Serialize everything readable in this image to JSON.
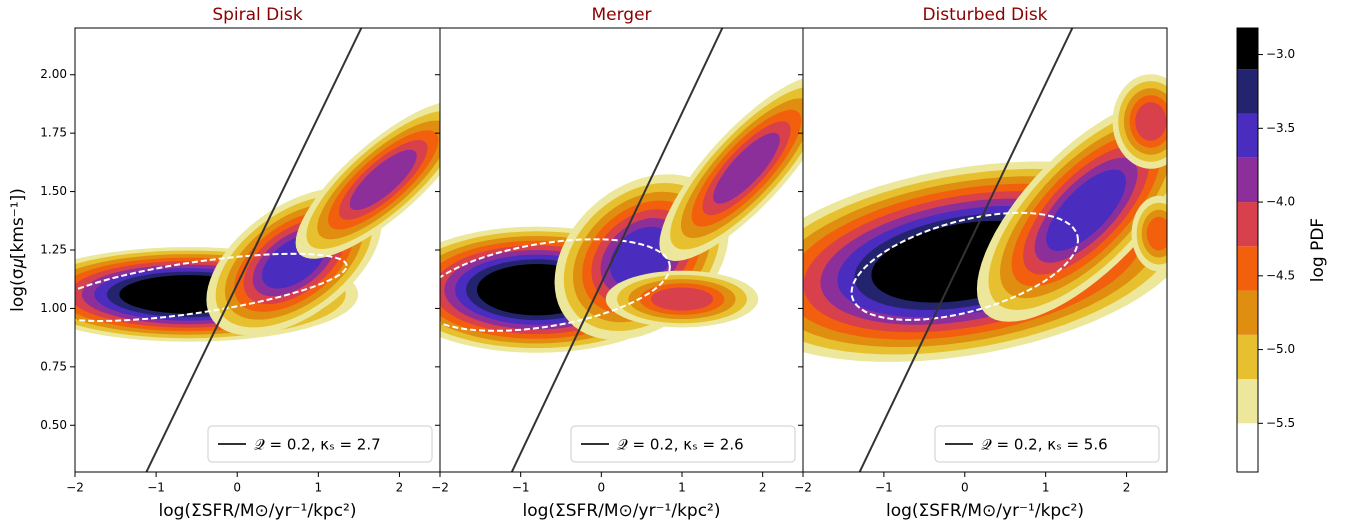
{
  "chart_data": [
    {
      "type": "contour",
      "title": "Spiral Disk",
      "xlabel": "log(ΣSFR/M⊙/yr⁻¹/kpc²)",
      "ylabel": "log(σ𝜇[kms⁻¹])",
      "xlim": [
        -2,
        2.5
      ],
      "ylim": [
        0.3,
        2.2
      ],
      "xticks": [
        {
          "value": -2,
          "label": "−2"
        },
        {
          "value": -1,
          "label": "−1"
        },
        0,
        1,
        2
      ],
      "yticks": [
        {
          "value": 0.5,
          "label": "0.50"
        },
        {
          "value": 0.75,
          "label": "0.75"
        },
        {
          "value": 1.0,
          "label": "1.00"
        },
        {
          "value": 1.25,
          "label": "1.25"
        },
        {
          "value": 1.5,
          "label": "1.50"
        },
        {
          "value": 1.75,
          "label": "1.75"
        },
        {
          "value": 2.0,
          "label": "2.00"
        }
      ],
      "series": [
        {
          "name": "𝒬 = 0.2, κₛ = 2.7",
          "color": "#333333",
          "x": [
            -1.12,
            1.53
          ],
          "y": [
            0.3,
            2.2
          ]
        }
      ]
    },
    {
      "type": "contour",
      "title": "Merger",
      "xlabel": "log(ΣSFR/M⊙/yr⁻¹/kpc²)",
      "xlim": [
        -2,
        2.5
      ],
      "ylim": [
        0.3,
        2.2
      ],
      "xticks": [
        {
          "value": -2,
          "label": "−2"
        },
        {
          "value": -1,
          "label": "−1"
        },
        0,
        1,
        2
      ],
      "yticks": [
        0.5,
        0.75,
        1.0,
        1.25,
        1.5,
        1.75,
        2.0
      ],
      "series": [
        {
          "name": "𝒬 = 0.2, κₛ = 2.6",
          "color": "#333333",
          "x": [
            -1.11,
            1.5
          ],
          "y": [
            0.3,
            2.2
          ]
        }
      ]
    },
    {
      "type": "contour",
      "title": "Disturbed Disk",
      "xlabel": "log(ΣSFR/M⊙/yr⁻¹/kpc²)",
      "xlim": [
        -2,
        2.5
      ],
      "ylim": [
        0.3,
        2.2
      ],
      "xticks": [
        {
          "value": -2,
          "label": "−2"
        },
        {
          "value": -1,
          "label": "−1"
        },
        0,
        1,
        2
      ],
      "yticks": [
        0.5,
        0.75,
        1.0,
        1.25,
        1.5,
        1.75,
        2.0
      ],
      "series": [
        {
          "name": "𝒬 = 0.2, κₛ = 5.6",
          "color": "#333333",
          "x": [
            -1.3,
            1.33
          ],
          "y": [
            0.3,
            2.2
          ]
        }
      ]
    }
  ],
  "colorbar": {
    "label": "log PDF",
    "lim": [
      -5.83,
      -2.82
    ],
    "levels": [
      -5.8,
      -5.5,
      -5.2,
      -4.9,
      -4.6,
      -4.3,
      -4.0,
      -3.7,
      -3.4,
      -3.1,
      -2.8
    ],
    "colors": [
      "#ffffff",
      "#ece79a",
      "#e6c02e",
      "#e08e10",
      "#f2600e",
      "#d8404c",
      "#8c2f9a",
      "#4a2cbe",
      "#24246e",
      "#000000"
    ],
    "ticks": [
      {
        "value": -3.0,
        "label": "−3.0"
      },
      {
        "value": -3.5,
        "label": "−3.5"
      },
      {
        "value": -4.0,
        "label": "−4.0"
      },
      {
        "value": -4.5,
        "label": "−4.5"
      },
      {
        "value": -5.0,
        "label": "−5.0"
      },
      {
        "value": -5.5,
        "label": "−5.5"
      }
    ]
  }
}
